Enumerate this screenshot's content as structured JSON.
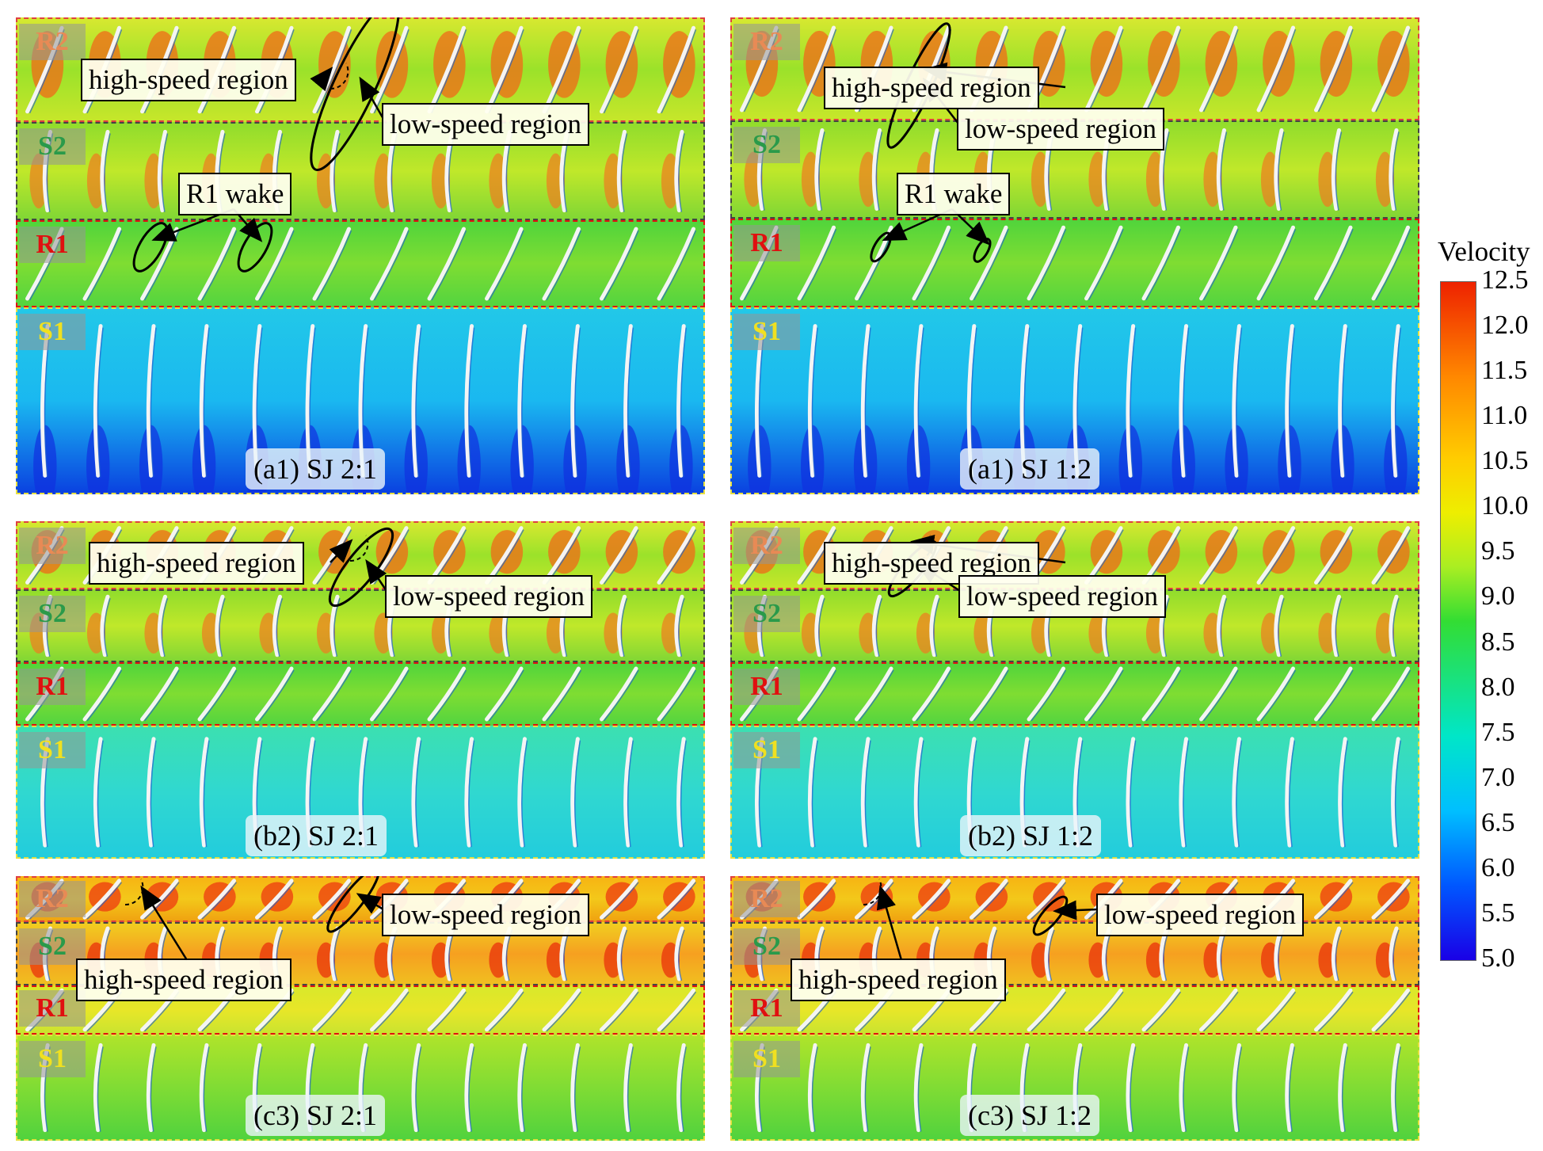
{
  "colorbar": {
    "title": "Velocity",
    "ticks": [
      "12.5",
      "12.0",
      "11.5",
      "11.0",
      "10.5",
      "10.0",
      "9.5",
      "9.0",
      "8.5",
      "8.0",
      "7.5",
      "7.0",
      "6.5",
      "6.0",
      "5.5",
      "5.0"
    ]
  },
  "zone_labels": {
    "r2": "R2",
    "s2": "S2",
    "r1": "R1",
    "s1": "S1"
  },
  "panels": [
    {
      "caption": "(a1) SJ 2:1",
      "callouts": {
        "high": "high-speed region",
        "low": "low-speed region",
        "wake": "R1 wake"
      }
    },
    {
      "caption": "(a1) SJ 1:2",
      "callouts": {
        "high": "high-speed region",
        "low": "low-speed region",
        "wake": "R1 wake"
      }
    },
    {
      "caption": "(b2) SJ 2:1",
      "callouts": {
        "high": "high-speed region",
        "low": "low-speed region"
      }
    },
    {
      "caption": "(b2) SJ 1:2",
      "callouts": {
        "high": "high-speed region",
        "low": "low-speed region"
      }
    },
    {
      "caption": "(c3) SJ 2:1",
      "callouts": {
        "high": "high-speed region",
        "low": "low-speed region"
      }
    },
    {
      "caption": "(c3) SJ 1:2",
      "callouts": {
        "high": "high-speed region",
        "low": "low-speed region"
      }
    }
  ]
}
